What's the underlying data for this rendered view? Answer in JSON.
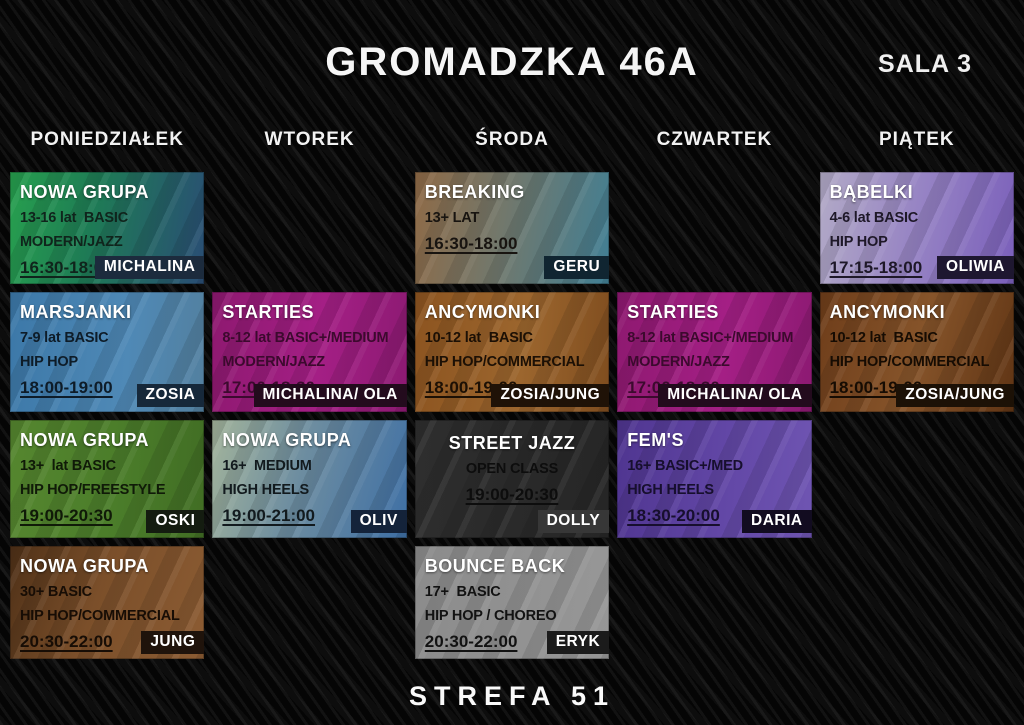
{
  "header": {
    "title": "GROMADZKA 46A",
    "room": "SALA 3"
  },
  "days": [
    "PONIEDZIAŁEK",
    "WTOREK",
    "ŚRODA",
    "CZWARTEK",
    "PIĄTEK"
  ],
  "footer": {
    "brand": "STREFA 51"
  },
  "colors": {
    "page_bg": "#050505",
    "badge_text": "#ffffff"
  },
  "cards": [
    {
      "day": 1,
      "row": 1,
      "title": "NOWA GRUPA",
      "details": [
        "13-16 lat  BASIC",
        "MODERN/JAZZ"
      ],
      "time": "16:30-18:00",
      "teacher": "MICHALINA",
      "align": "left",
      "bg": "linear-gradient(100deg, #27a04e 0%, #1e7b55 42%, #2a4d75 100%)",
      "badge_bg": "#1c2b3d",
      "ink": "#10241c"
    },
    {
      "day": 1,
      "row": 2,
      "title": "MARSJANKI",
      "details": [
        "7-9 lat BASIC",
        "HIP HOP"
      ],
      "time": "18:00-19:00",
      "teacher": "ZOSIA",
      "align": "left",
      "bg": "linear-gradient(95deg, #3c78a8 0%, #4f89b6 60%, #53809f 100%)",
      "badge_bg": "#16283a",
      "ink": "#0e1c28"
    },
    {
      "day": 1,
      "row": 3,
      "title": "NOWA GRUPA",
      "details": [
        "13+  lat BASIC",
        "HIP HOP/FREESTYLE"
      ],
      "time": "19:00-20:30",
      "teacher": "OSKI",
      "align": "left",
      "bg": "linear-gradient(95deg, #55862f 0%, #4b7d2a 55%, #416d24 100%)",
      "badge_bg": "#141c10",
      "ink": "#101a08"
    },
    {
      "day": 1,
      "row": 4,
      "title": "NOWA GRUPA",
      "details": [
        "30+ BASIC",
        "HIP HOP/COMMERCIAL"
      ],
      "time": "20:30-22:00",
      "teacher": "JUNG",
      "align": "left",
      "bg": "linear-gradient(110deg, #4e3017 0%, #7b4f2a 45%, #8c5c33 100%)",
      "badge_bg": "#1f130b",
      "ink": "#170d05"
    },
    {
      "day": 2,
      "row": 2,
      "title": "STARTIES",
      "details": [
        "8-12 lat BASIC+/MEDIUM",
        "MODERN/JAZZ"
      ],
      "time": "17:00-18:30",
      "teacher": "MICHALINA/ OLA",
      "align": "left",
      "bg": "linear-gradient(95deg, #8e1970 0%, #a41f85 55%, #8c1a72 100%)",
      "badge_bg": "#230b1d",
      "ink": "#3c0a2e"
    },
    {
      "day": 2,
      "row": 3,
      "title": "NOWA GRUPA",
      "details": [
        "16+  MEDIUM",
        "HIGH HEELS"
      ],
      "time": "19:00-21:00",
      "teacher": "OLIV",
      "align": "left",
      "bg": "linear-gradient(105deg, #a3b49b 0%, #6d8da0 45%, #3e6fa5 100%)",
      "badge_bg": "#14233a",
      "ink": "#121a1e"
    },
    {
      "day": 3,
      "row": 1,
      "title": "BREAKING",
      "details": [
        "13+ LAT"
      ],
      "time": "16:30-18:00",
      "teacher": "GERU",
      "align": "left",
      "bg": "linear-gradient(100deg, #8f6a46 0%, #72786c 45%, #417f94 100%)",
      "badge_bg": "#102531",
      "ink": "#181410"
    },
    {
      "day": 3,
      "row": 2,
      "title": "ANCYMONKI",
      "details": [
        "10-12 lat  BASIC",
        "HIP HOP/COMMERCIAL"
      ],
      "time": "18:00-19:00",
      "teacher": "ZOSIA/JUNG",
      "align": "left",
      "bg": "linear-gradient(95deg, #8c5420 0%, #9c662e 55%, #7f4d1f 100%)",
      "badge_bg": "#1f1207",
      "ink": "#1c1005"
    },
    {
      "day": 3,
      "row": 3,
      "title": "STREET JAZZ",
      "details": [
        "OPEN CLASS"
      ],
      "time": "19:00-20:30",
      "teacher": "DOLLY",
      "align": "center",
      "bg": "linear-gradient(95deg, #2e2e2e 0%, #262626 100%)",
      "badge_bg": "#373737",
      "ink": "#0d0d0d"
    },
    {
      "day": 3,
      "row": 4,
      "title": "BOUNCE BACK",
      "details": [
        "17+  BASIC",
        "HIP HOP / CHOREO"
      ],
      "time": "20:30-22:00",
      "teacher": "ERYK",
      "align": "left",
      "bg": "linear-gradient(95deg, #8b8b8b 0%, #979797 100%)",
      "badge_bg": "#1b1b1b",
      "ink": "#121212"
    },
    {
      "day": 4,
      "row": 2,
      "title": "STARTIES",
      "details": [
        "8-12 lat BASIC+/MEDIUM",
        "MODERN/JAZZ"
      ],
      "time": "17:00-18:30",
      "teacher": "MICHALINA/ OLA",
      "align": "left",
      "bg": "linear-gradient(95deg, #8e1970 0%, #a41f85 55%, #8c1a72 100%)",
      "badge_bg": "#230b1d",
      "ink": "#3c0a2e"
    },
    {
      "day": 4,
      "row": 3,
      "title": "FEM'S",
      "details": [
        "16+ BASIC+/MED",
        "HIGH HEELS"
      ],
      "time": "18:30-20:00",
      "teacher": "DARIA",
      "align": "left",
      "bg": "linear-gradient(95deg, #4f3590 0%, #6247a6 55%, #6f55b2 100%)",
      "badge_bg": "#120c20",
      "ink": "#170f2e"
    },
    {
      "day": 5,
      "row": 1,
      "title": "BĄBELKI",
      "details": [
        "4-6 lat BASIC",
        "HIP HOP"
      ],
      "time": "17:15-18:00",
      "teacher": "OLIWIA",
      "align": "left",
      "bg": "linear-gradient(100deg, #b2aac6 0%, #9683c4 50%, #7a5fba 100%)",
      "badge_bg": "#1e1730",
      "ink": "#1e1828"
    },
    {
      "day": 5,
      "row": 2,
      "title": "ANCYMONKI",
      "details": [
        "10-12 lat  BASIC",
        "HIP HOP/COMMERCIAL"
      ],
      "time": "18:00-19:00",
      "teacher": "ZOSIA/JUNG",
      "align": "left",
      "bg": "linear-gradient(105deg, #6e3d1a 0%, #86542a 50%, #5f3414 100%)",
      "badge_bg": "#1c1106",
      "ink": "#160c03"
    }
  ]
}
